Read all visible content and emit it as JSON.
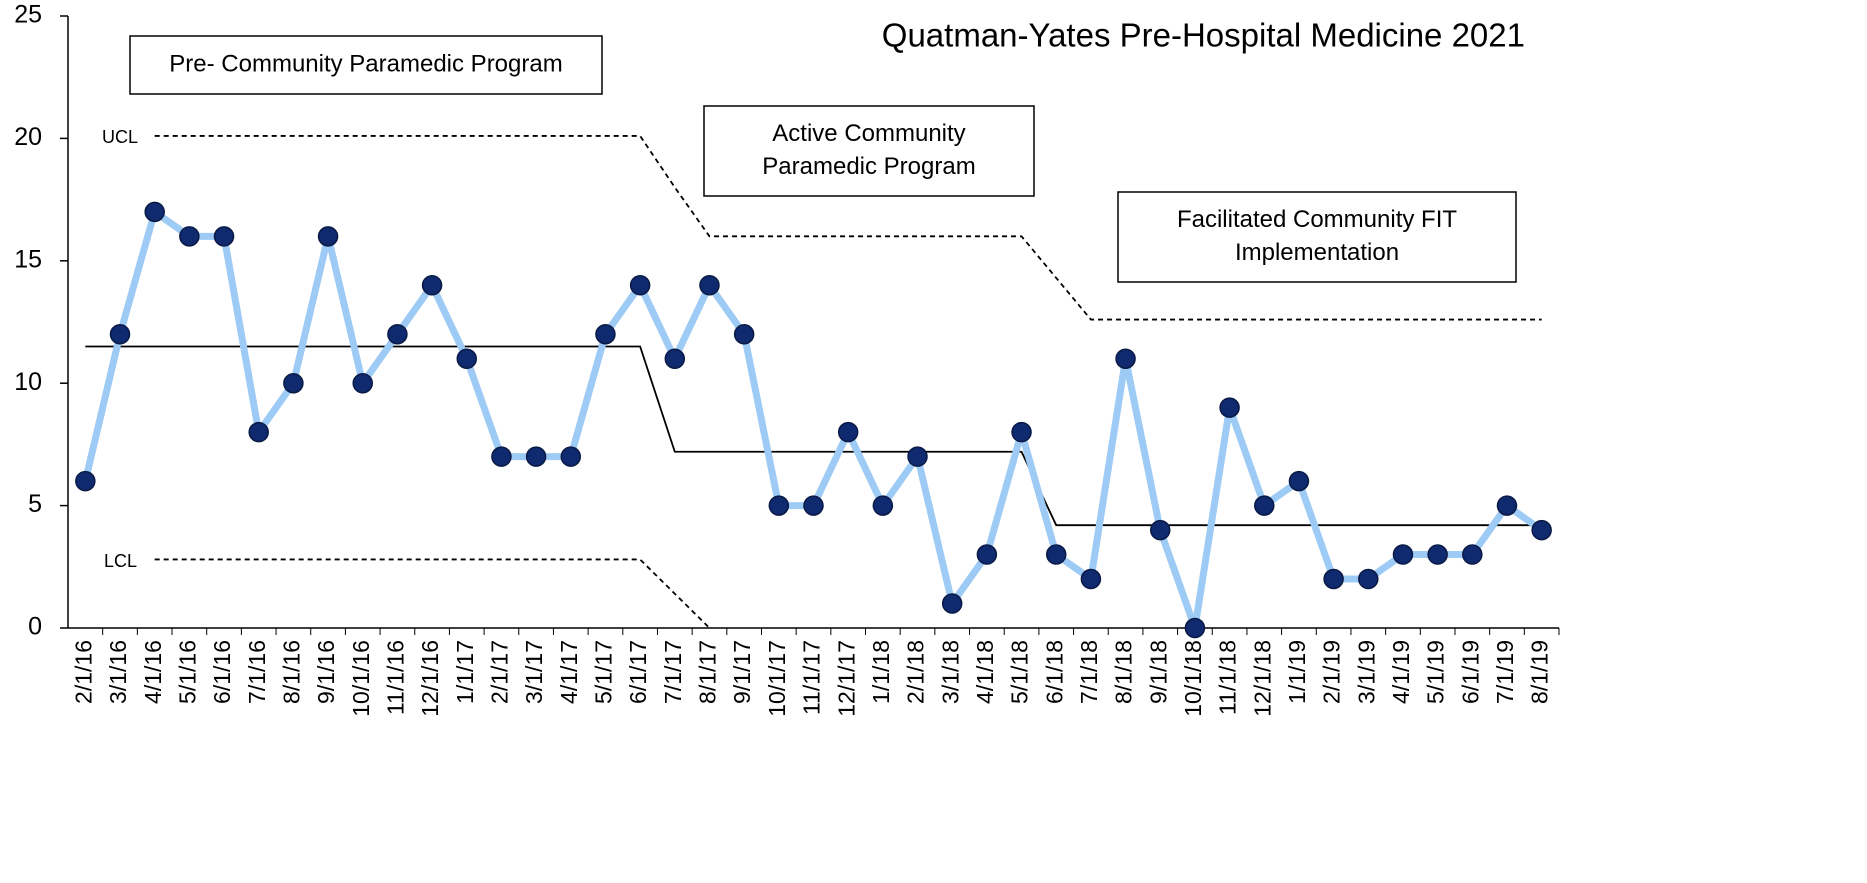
{
  "chart_data": {
    "type": "line",
    "title": "Quatman-Yates Pre-Hospital Medicine 2021",
    "categories": [
      "2/1/16",
      "3/1/16",
      "4/1/16",
      "5/1/16",
      "6/1/16",
      "7/1/16",
      "8/1/16",
      "9/1/16",
      "10/1/16",
      "11/1/16",
      "12/1/16",
      "1/1/17",
      "2/1/17",
      "3/1/17",
      "4/1/17",
      "5/1/17",
      "6/1/17",
      "7/1/17",
      "8/1/17",
      "9/1/17",
      "10/1/17",
      "11/1/17",
      "12/1/17",
      "1/1/18",
      "2/1/18",
      "3/1/18",
      "4/1/18",
      "5/1/18",
      "6/1/18",
      "7/1/18",
      "8/1/18",
      "9/1/18",
      "10/1/18",
      "11/1/18",
      "12/1/18",
      "1/1/19",
      "2/1/19",
      "3/1/19",
      "4/1/19",
      "5/1/19",
      "6/1/19",
      "7/1/19",
      "8/1/19"
    ],
    "series": [
      {
        "color": "#9dcbf5",
        "marker_color": "#0f2a6e",
        "values": [
          6,
          12,
          17,
          16,
          16,
          8,
          10,
          16,
          10,
          12,
          14,
          11,
          7,
          7,
          7,
          12,
          14,
          11,
          14,
          12,
          5,
          5,
          8,
          5,
          7,
          1,
          3,
          8,
          3,
          2,
          11,
          4,
          0,
          9,
          5,
          6,
          2,
          2,
          3,
          3,
          3,
          5,
          4
        ]
      },
      {
        "color": "#000000",
        "values": [
          11.5,
          11.5,
          11.5,
          11.5,
          11.5,
          11.5,
          11.5,
          11.5,
          11.5,
          11.5,
          11.5,
          11.5,
          11.5,
          11.5,
          11.5,
          11.5,
          11.5,
          7.2,
          7.2,
          7.2,
          7.2,
          7.2,
          7.2,
          7.2,
          7.2,
          7.2,
          7.2,
          7.2,
          4.2,
          4.2,
          4.2,
          4.2,
          4.2,
          4.2,
          4.2,
          4.2,
          4.2,
          4.2,
          4.2,
          4.2,
          4.2,
          4.2,
          4.2
        ]
      },
      {
        "color": "#000000",
        "dash": true,
        "values": [
          null,
          null,
          20.1,
          20.1,
          20.1,
          20.1,
          20.1,
          20.1,
          20.1,
          20.1,
          20.1,
          20.1,
          20.1,
          20.1,
          20.1,
          20.1,
          20.1,
          18,
          16,
          16,
          16,
          16,
          16,
          16,
          16,
          16,
          16,
          16,
          14.3,
          12.6,
          12.6,
          12.6,
          12.6,
          12.6,
          12.6,
          12.6,
          12.6,
          12.6,
          12.6,
          12.6,
          12.6,
          12.6,
          12.6
        ]
      },
      {
        "color": "#000000",
        "dash": true,
        "values": [
          null,
          null,
          2.8,
          2.8,
          2.8,
          2.8,
          2.8,
          2.8,
          2.8,
          2.8,
          2.8,
          2.8,
          2.8,
          2.8,
          2.8,
          2.8,
          2.8,
          1.4,
          0,
          null,
          null,
          null,
          null,
          null,
          null,
          null,
          null,
          null,
          null,
          null,
          null,
          null,
          null,
          null,
          null,
          null,
          null,
          null,
          null,
          null,
          null,
          null,
          null
        ]
      }
    ],
    "annotations": [
      "UCL",
      "LCL"
    ],
    "boxes": [
      [
        "Pre- Community Paramedic Program"
      ],
      [
        "Active Community",
        "Paramedic Program"
      ],
      [
        "Facilitated Community FIT",
        "Implementation"
      ]
    ],
    "ylim": [
      0,
      25
    ],
    "yticks": [
      0,
      5,
      10,
      15,
      20,
      25
    ]
  }
}
